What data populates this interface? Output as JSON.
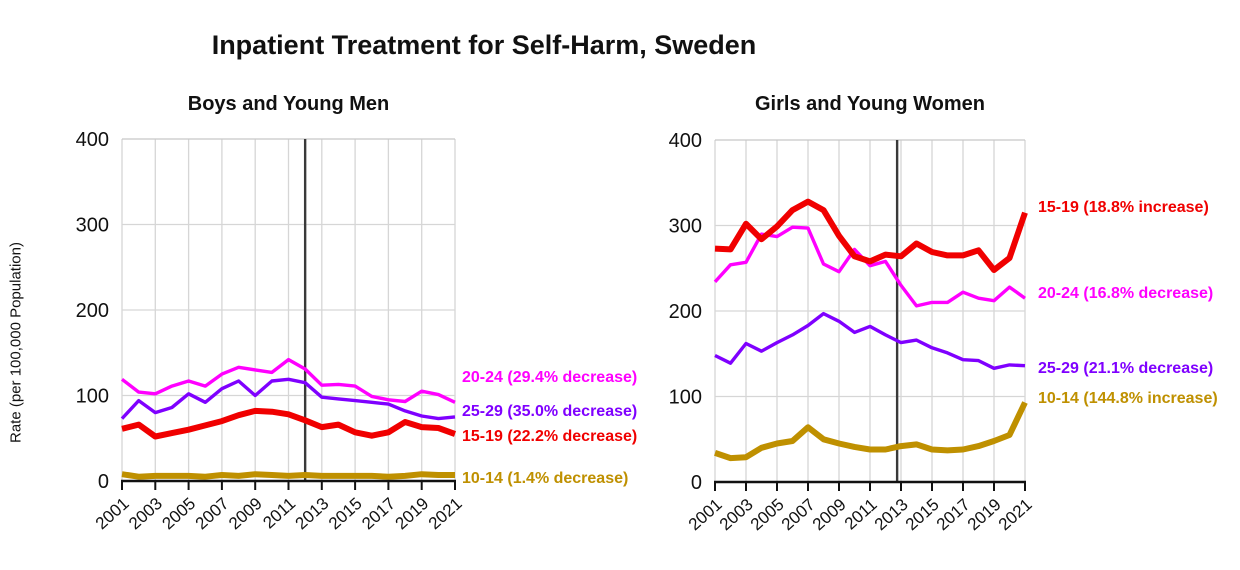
{
  "page": {
    "title": "Inpatient Treatment for Self-Harm, Sweden",
    "y_axis_label": "Rate (per 100,000 Population)"
  },
  "colors": {
    "age_15_19": "#F00000",
    "age_20_24": "#FF00FF",
    "age_25_29": "#7F00FF",
    "age_10_14": "#BF9000",
    "gridline": "#D6D6D6",
    "event_line": "#3A3A3A",
    "axis": "#111111"
  },
  "chart_data": [
    {
      "type": "line",
      "title": "Boys and Young Men",
      "x": [
        2001,
        2002,
        2003,
        2004,
        2005,
        2006,
        2007,
        2008,
        2009,
        2010,
        2011,
        2012,
        2013,
        2014,
        2015,
        2016,
        2017,
        2018,
        2019,
        2020,
        2021
      ],
      "x_tick_labels": [
        "2001",
        "2003",
        "2005",
        "2007",
        "2009",
        "2011",
        "2013",
        "2015",
        "2017",
        "2019",
        "2021"
      ],
      "ylim": [
        0,
        400
      ],
      "y_ticks": [
        0,
        100,
        200,
        300,
        400
      ],
      "grid": true,
      "legend_position": "right-annotations",
      "event_line_year": 2012,
      "series": [
        {
          "name": "20-24",
          "label": "20-24 (29.4% decrease)",
          "color": "#FF00FF",
          "thick": false,
          "label_value": 120,
          "values": [
            119,
            104,
            102,
            111,
            117,
            111,
            125,
            133,
            130,
            127,
            142,
            131,
            112,
            113,
            111,
            99,
            95,
            93,
            105,
            101,
            92
          ]
        },
        {
          "name": "25-29",
          "label": "25-29 (35.0% decrease)",
          "color": "#7F00FF",
          "thick": false,
          "label_value": 81,
          "values": [
            73,
            94,
            80,
            86,
            102,
            92,
            108,
            117,
            100,
            117,
            119,
            115,
            98,
            96,
            94,
            92,
            90,
            82,
            76,
            73,
            75
          ]
        },
        {
          "name": "15-19",
          "label": "15-19 (22.2% decrease)",
          "color": "#F00000",
          "thick": true,
          "label_value": 52,
          "values": [
            61,
            66,
            52,
            56,
            60,
            65,
            70,
            77,
            82,
            81,
            78,
            71,
            63,
            66,
            57,
            53,
            57,
            69,
            63,
            62,
            55
          ]
        },
        {
          "name": "10-14",
          "label": "10-14 (1.4% decrease)",
          "color": "#BF9000",
          "thick": true,
          "label_value": 2,
          "values": [
            8,
            5,
            6,
            6,
            6,
            5,
            7,
            6,
            8,
            7,
            6,
            7,
            6,
            6,
            6,
            6,
            5,
            6,
            8,
            7,
            7
          ]
        }
      ]
    },
    {
      "type": "line",
      "title": "Girls and Young Women",
      "x": [
        2001,
        2002,
        2003,
        2004,
        2005,
        2006,
        2007,
        2008,
        2009,
        2010,
        2011,
        2012,
        2013,
        2014,
        2015,
        2016,
        2017,
        2018,
        2019,
        2020,
        2021
      ],
      "x_tick_labels": [
        "2001",
        "2003",
        "2005",
        "2007",
        "2009",
        "2011",
        "2013",
        "2015",
        "2017",
        "2019",
        "2021"
      ],
      "ylim": [
        0,
        400
      ],
      "y_ticks": [
        0,
        100,
        200,
        300,
        400
      ],
      "grid": true,
      "legend_position": "right-annotations",
      "event_line_year": 2012.75,
      "series": [
        {
          "name": "15-19",
          "label": "15-19 (18.8% increase)",
          "color": "#F00000",
          "thick": true,
          "label_value": 320,
          "values": [
            273,
            272,
            302,
            284,
            299,
            318,
            328,
            318,
            288,
            264,
            258,
            266,
            264,
            279,
            269,
            265,
            265,
            271,
            248,
            262,
            315
          ]
        },
        {
          "name": "20-24",
          "label": "20-24 (16.8% decrease)",
          "color": "#FF00FF",
          "thick": false,
          "label_value": 220,
          "values": [
            234,
            254,
            257,
            290,
            287,
            298,
            297,
            255,
            246,
            272,
            253,
            258,
            230,
            206,
            210,
            210,
            222,
            215,
            212,
            228,
            215
          ]
        },
        {
          "name": "25-29",
          "label": "25-29 (21.1% decrease)",
          "color": "#7F00FF",
          "thick": false,
          "label_value": 132,
          "values": [
            148,
            139,
            162,
            153,
            163,
            172,
            183,
            197,
            188,
            175,
            182,
            172,
            163,
            166,
            157,
            151,
            143,
            142,
            133,
            137,
            136
          ]
        },
        {
          "name": "10-14",
          "label": "10-14 (144.8% increase)",
          "color": "#BF9000",
          "thick": true,
          "label_value": 97,
          "values": [
            34,
            28,
            29,
            40,
            45,
            48,
            64,
            50,
            45,
            41,
            38,
            38,
            42,
            44,
            38,
            37,
            38,
            42,
            48,
            55,
            93
          ]
        }
      ]
    }
  ]
}
